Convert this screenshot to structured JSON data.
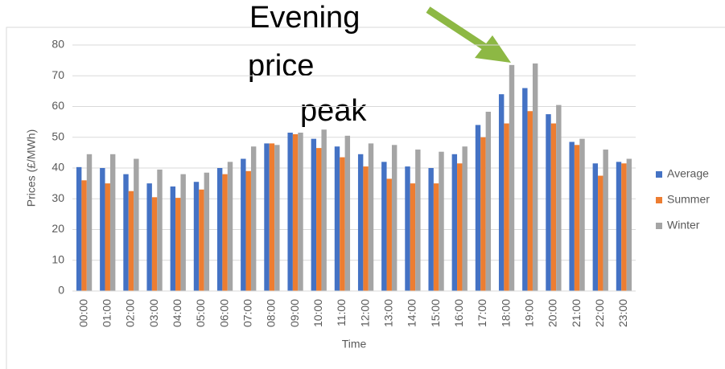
{
  "chart_data": {
    "type": "bar",
    "xlabel": "Time",
    "ylabel": "Prices (£/MWh)",
    "annotations": [
      "Evening",
      "price",
      "peak"
    ],
    "categories": [
      "00:00",
      "01:00",
      "02:00",
      "03:00",
      "04:00",
      "05:00",
      "06:00",
      "07:00",
      "08:00",
      "09:00",
      "10:00",
      "11:00",
      "12:00",
      "13:00",
      "14:00",
      "15:00",
      "16:00",
      "17:00",
      "18:00",
      "19:00",
      "20:00",
      "21:00",
      "22:00",
      "23:00"
    ],
    "series": [
      {
        "name": "Average",
        "color": "#4472c4",
        "values": [
          40.3,
          40,
          38,
          35,
          34,
          35.5,
          40,
          43,
          48,
          51.5,
          49.5,
          47,
          44.5,
          42,
          40.5,
          40,
          44.5,
          54,
          64,
          66,
          57.5,
          48.5,
          41.5,
          42
        ]
      },
      {
        "name": "Summer",
        "color": "#ed7d31",
        "values": [
          36,
          35,
          32.5,
          30.5,
          30.3,
          33,
          38,
          39,
          48,
          51,
          46.5,
          43.5,
          40.5,
          36.5,
          35,
          35,
          41.5,
          50,
          54.5,
          58.5,
          54.5,
          47.5,
          37.5,
          41.5
        ]
      },
      {
        "name": "Winter",
        "color": "#a5a5a5",
        "values": [
          44.5,
          44.5,
          43,
          39.5,
          38,
          38.5,
          42,
          47,
          47.5,
          51.5,
          52.5,
          50.5,
          48,
          47.5,
          46,
          45.3,
          47,
          58.3,
          73.5,
          74,
          60.5,
          49.5,
          46,
          43
        ]
      }
    ],
    "ylim": [
      0,
      80
    ],
    "yticks": [
      0,
      10,
      20,
      30,
      40,
      50,
      60,
      70,
      80
    ],
    "grid": true,
    "legend": "right"
  }
}
